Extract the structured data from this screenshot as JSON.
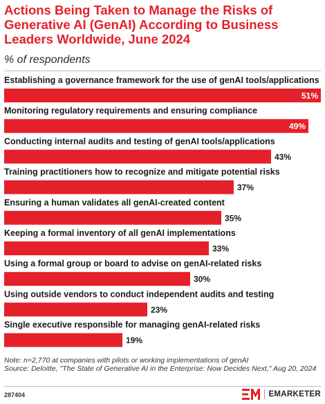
{
  "header": {
    "title": "Actions Being Taken to Manage the Risks of Generative AI (GenAI) According to Business Leaders Worldwide, June 2024",
    "subtitle": "% of respondents"
  },
  "chart_data": {
    "type": "bar",
    "orientation": "horizontal",
    "categories": [
      "Establishing a governance framework for the use of genAI tools/applications",
      "Monitoring regulatory requirements and ensuring compliance",
      "Conducting internal audits and testing of genAI tools/applications",
      "Training practitioners how to recognize and mitigate potential risks",
      "Ensuring a human validates all genAI-created content",
      "Keeping a formal inventory of all genAI implementations",
      "Using a formal group or board to advise on genAI-related risks",
      "Using outside vendors to conduct independent audits and testing",
      "Single executive responsible for managing genAI-related risks"
    ],
    "values": [
      51,
      49,
      43,
      37,
      35,
      33,
      30,
      23,
      19
    ],
    "value_labels": [
      "51%",
      "49%",
      "43%",
      "37%",
      "35%",
      "33%",
      "30%",
      "23%",
      "19%"
    ],
    "unit": "%",
    "xlim": [
      0,
      51
    ],
    "bar_color": "#e4202a",
    "grid": false,
    "legend": "none"
  },
  "footer": {
    "note": "Note: n=2,770 at companies with pilots or working implementations of genAI",
    "source": "Source: Deloitte, \"The State of Generative AI in the Enterprise: Now Decides Next,\" Aug 20, 2024",
    "chart_id": "287404",
    "brand": "EMARKETER",
    "brand_color": "#e4202a"
  }
}
